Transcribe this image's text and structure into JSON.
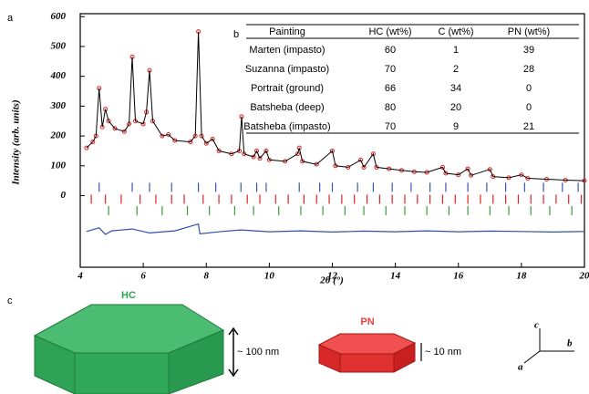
{
  "panel_labels": [
    "a",
    "b",
    "c"
  ],
  "chart_data": {
    "type": "line",
    "xlabel": "2θ (°)",
    "ylabel": "Intensity (arb. units)",
    "xlim": [
      4,
      20
    ],
    "ylim": [
      -240,
      610
    ],
    "xticks": [
      4,
      6,
      8,
      10,
      12,
      14,
      16,
      18,
      20
    ],
    "yticks": [
      0,
      100,
      200,
      300,
      400,
      500,
      600
    ],
    "x": [
      4.2,
      4.4,
      4.5,
      4.6,
      4.7,
      4.8,
      4.9,
      5.1,
      5.4,
      5.55,
      5.65,
      5.75,
      6.0,
      6.1,
      6.2,
      6.3,
      6.6,
      6.8,
      7.0,
      7.5,
      7.65,
      7.75,
      7.85,
      8.0,
      8.2,
      8.4,
      8.8,
      9.05,
      9.12,
      9.2,
      9.5,
      9.6,
      9.7,
      9.9,
      10.0,
      10.5,
      10.9,
      10.95,
      11.05,
      11.5,
      12.0,
      12.1,
      12.5,
      12.9,
      13.0,
      13.3,
      13.4,
      13.8,
      14.2,
      14.6,
      15.0,
      15.5,
      15.6,
      16.0,
      16.3,
      16.4,
      17.0,
      17.1,
      17.6,
      18.0,
      18.2,
      18.8,
      19.4,
      20.0
    ],
    "series": [
      {
        "color": "#000000",
        "marker_color": "#e02020",
        "values": [
          160,
          180,
          200,
          360,
          230,
          290,
          250,
          225,
          215,
          240,
          465,
          250,
          240,
          280,
          420,
          250,
          200,
          205,
          185,
          180,
          200,
          550,
          200,
          175,
          190,
          150,
          140,
          150,
          265,
          140,
          130,
          150,
          125,
          150,
          120,
          115,
          140,
          160,
          115,
          105,
          150,
          100,
          95,
          120,
          95,
          140,
          95,
          90,
          85,
          80,
          78,
          95,
          75,
          70,
          90,
          68,
          88,
          64,
          60,
          70,
          58,
          55,
          52,
          50
        ]
      }
    ],
    "difference": {
      "color": "#2f4fb0",
      "x": [
        4.2,
        4.6,
        4.8,
        5.0,
        5.65,
        6.2,
        7.0,
        7.75,
        7.8,
        8.5,
        9.1,
        10,
        11,
        12,
        13,
        14,
        15,
        16,
        17,
        18,
        19,
        20
      ],
      "values": [
        -120,
        -108,
        -130,
        -118,
        -112,
        -125,
        -118,
        -95,
        -128,
        -120,
        -115,
        -121,
        -118,
        -122,
        -119,
        -121,
        -118,
        -121,
        -119,
        -120,
        -122,
        -120
      ]
    },
    "reflections": [
      {
        "color": "#3a4fc0",
        "offset": 28,
        "positions": [
          4.6,
          5.65,
          6.2,
          6.9,
          7.75,
          8.3,
          9.1,
          9.6,
          9.9,
          10.95,
          11.6,
          12.0,
          12.8,
          13.3,
          13.9,
          14.5,
          15.1,
          15.6,
          16.3,
          16.9,
          17.5,
          18.1,
          18.7,
          19.3,
          19.8
        ]
      },
      {
        "color": "#e02020",
        "offset": -12,
        "positions": [
          4.35,
          4.8,
          5.3,
          5.9,
          6.4,
          6.9,
          7.3,
          7.9,
          8.4,
          8.8,
          9.3,
          9.7,
          10.2,
          10.6,
          11.1,
          11.5,
          11.9,
          12.3,
          12.7,
          13.1,
          13.5,
          13.9,
          14.3,
          14.7,
          15.1,
          15.5,
          15.9,
          16.3,
          16.7,
          17.1,
          17.5,
          17.9,
          18.3,
          18.7,
          19.1,
          19.5,
          19.9
        ]
      },
      {
        "color": "#3a9a3a",
        "offset": -50,
        "positions": [
          4.9,
          5.8,
          6.6,
          7.4,
          8.1,
          8.9,
          9.5,
          10.3,
          11.0,
          11.7,
          12.4,
          13.0,
          13.7,
          14.3,
          15.0,
          15.7,
          16.3,
          17.0,
          17.6,
          18.3,
          18.9,
          19.6
        ]
      }
    ]
  },
  "table": {
    "header": [
      "Painting",
      "HC (wt%)",
      "C (wt%)",
      "PN (wt%)"
    ],
    "rows": [
      [
        "Marten (impasto)",
        60,
        1,
        39
      ],
      [
        "Suzanna (impasto)",
        70,
        2,
        28
      ],
      [
        "Portrait (ground)",
        66,
        34,
        0
      ],
      [
        "Batsheba (deep)",
        80,
        20,
        0
      ],
      [
        "Batsheba (impasto)",
        70,
        9,
        21
      ]
    ]
  },
  "diagram": {
    "hc_label": "HC",
    "hc_size": "~ 100 nm",
    "pn_label": "PN",
    "pn_size": "~ 10 nm",
    "axes": [
      "c",
      "b",
      "a"
    ]
  }
}
